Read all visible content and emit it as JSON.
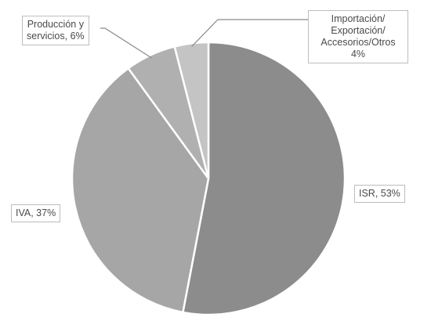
{
  "chart_data": {
    "type": "pie",
    "title": "",
    "slices": [
      {
        "label": "ISR",
        "value": 53,
        "text": "ISR, 53%",
        "color": "#8c8c8c"
      },
      {
        "label": "IVA",
        "value": 37,
        "text": "IVA, 37%",
        "color": "#a6a6a6"
      },
      {
        "label": "Producción y servicios",
        "value": 6,
        "text_lines": [
          "Producción y",
          "servicios, 6%"
        ],
        "color": "#b0b0b0"
      },
      {
        "label": "Importación/Exportación/Accesorios/Otros",
        "value": 4,
        "text_lines": [
          "Importación/",
          "Exportación/",
          "Accesorios/Otros",
          "4%"
        ],
        "color": "#c4c4c4"
      }
    ],
    "legend": "none"
  }
}
